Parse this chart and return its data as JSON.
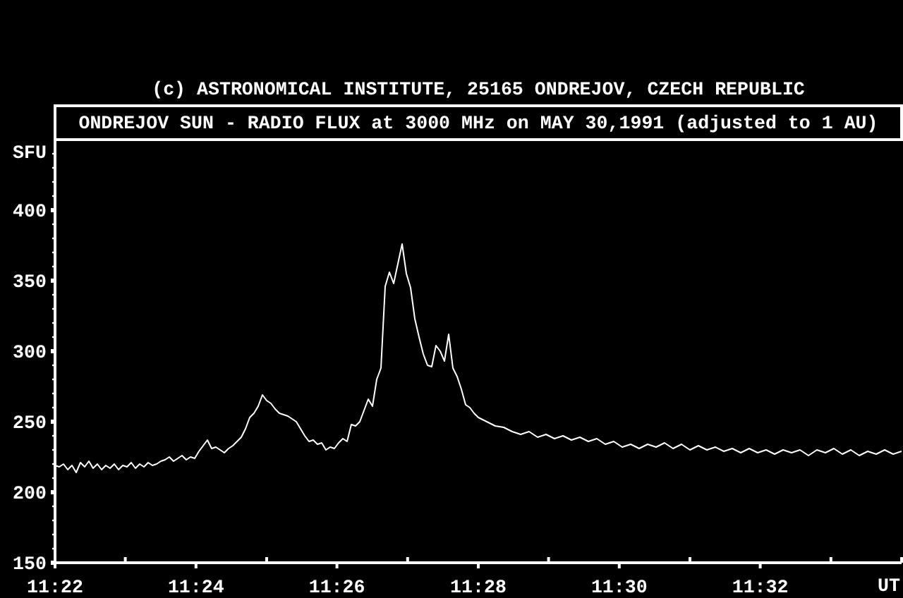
{
  "chart_data": {
    "type": "line",
    "title": "(c) ASTRONOMICAL INSTITUTE, 25165 ONDREJOV, CZECH REPUBLIC",
    "subtitle": "ONDREJOV SUN - RADIO FLUX at 3000 MHz on MAY 30,1991 (adjusted to 1 AU)",
    "xlabel": "UT",
    "ylabel": "SFU",
    "color": "#ffffff",
    "x": [
      11.3667,
      11.3677,
      11.3687,
      11.3697,
      11.3707,
      11.3717,
      11.3727,
      11.3737,
      11.3747,
      11.3757,
      11.3767,
      11.3777,
      11.3787,
      11.3797,
      11.3807,
      11.3817,
      11.3827,
      11.3837,
      11.3847,
      11.3857,
      11.3867,
      11.3877,
      11.3887,
      11.3897,
      11.3907,
      11.3917,
      11.3927,
      11.3937,
      11.3947,
      11.3957,
      11.3967,
      11.3977,
      11.3987,
      11.3997,
      11.4007,
      11.4017,
      11.4027,
      11.4037,
      11.4047,
      11.4057,
      11.4067,
      11.4077,
      11.4087,
      11.4097,
      11.4107,
      11.4117,
      11.4127,
      11.4137,
      11.4147,
      11.4157,
      11.4167,
      11.4177,
      11.4187,
      11.4197,
      11.4207,
      11.4217,
      11.4227,
      11.4237,
      11.4247,
      11.4257,
      11.4267,
      11.4277,
      11.4287,
      11.4297,
      11.4307,
      11.4317,
      11.4327,
      11.4337,
      11.4347,
      11.4357,
      11.4367,
      11.4377,
      11.4387,
      11.4397,
      11.4407,
      11.4417,
      11.4427,
      11.4437,
      11.4447,
      11.4457,
      11.4467,
      11.4477,
      11.4487,
      11.4497,
      11.4507,
      11.4517,
      11.4527,
      11.4537,
      11.4547,
      11.4557,
      11.4567,
      11.4577,
      11.4587,
      11.4597,
      11.4607,
      11.4617,
      11.4627,
      11.4637,
      11.4647,
      11.4657,
      11.4667,
      11.4707,
      11.4727,
      11.4747,
      11.4767,
      11.4787,
      11.4807,
      11.4827,
      11.4847,
      11.4867,
      11.4887,
      11.4907,
      11.4927,
      11.4947,
      11.4967,
      11.4987,
      11.5007,
      11.5027,
      11.5047,
      11.5067,
      11.5087,
      11.5107,
      11.5127,
      11.5147,
      11.5167,
      11.5187,
      11.5207,
      11.5227,
      11.5247,
      11.5267,
      11.5287,
      11.5307,
      11.5327,
      11.5347,
      11.5367,
      11.5387,
      11.5407,
      11.5427,
      11.5447,
      11.5467,
      11.5487,
      11.5507,
      11.5527,
      11.5547,
      11.5567,
      11.5587,
      11.5607,
      11.5627,
      11.5647,
      11.5667
    ],
    "values": [
      219,
      218,
      220,
      216,
      219,
      214,
      221,
      218,
      222,
      217,
      220,
      216,
      219,
      217,
      220,
      216,
      219,
      218,
      221,
      217,
      220,
      218,
      221,
      219,
      220,
      222,
      223,
      225,
      222,
      224,
      226,
      223,
      225,
      224,
      229,
      233,
      237,
      231,
      232,
      230,
      228,
      231,
      233,
      236,
      239,
      245,
      253,
      256,
      261,
      269,
      265,
      263,
      259,
      256,
      255,
      254,
      252,
      250,
      245,
      240,
      236,
      237,
      234,
      235,
      230,
      232,
      231,
      235,
      238,
      236,
      248,
      247,
      250,
      258,
      266,
      261,
      280,
      288,
      346,
      356,
      348,
      362,
      376,
      355,
      345,
      323,
      310,
      298,
      290,
      289,
      304,
      300,
      293,
      312,
      288,
      282,
      273,
      262,
      260,
      256,
      253,
      247,
      246,
      243,
      241,
      243,
      239,
      241,
      238,
      240,
      237,
      239,
      236,
      238,
      234,
      236,
      232,
      234,
      231,
      234,
      232,
      235,
      231,
      234,
      230,
      233,
      230,
      232,
      229,
      231,
      228,
      231,
      228,
      230,
      227,
      230,
      228,
      230,
      226,
      230,
      228,
      231,
      227,
      230,
      226,
      229,
      227,
      230,
      227,
      229
    ],
    "xlim": [
      11.3667,
      11.5667
    ],
    "xticks": [
      {
        "value": 11.3667,
        "label": "11:22"
      },
      {
        "value": 11.3833,
        "label": null
      },
      {
        "value": 11.4,
        "label": "11:24"
      },
      {
        "value": 11.4167,
        "label": null
      },
      {
        "value": 11.4333,
        "label": "11:26"
      },
      {
        "value": 11.45,
        "label": null
      },
      {
        "value": 11.4667,
        "label": "11:28"
      },
      {
        "value": 11.4833,
        "label": null
      },
      {
        "value": 11.5,
        "label": "11:30"
      },
      {
        "value": 11.5167,
        "label": null
      },
      {
        "value": 11.5333,
        "label": "11:32"
      },
      {
        "value": 11.55,
        "label": null
      },
      {
        "value": 11.5667,
        "label": null
      }
    ],
    "ylim": [
      150,
      450
    ],
    "yticks": [
      150,
      {
        "value": 160,
        "label": null
      },
      {
        "value": 170,
        "label": null
      },
      {
        "value": 180,
        "label": null
      },
      {
        "value": 190,
        "label": null
      },
      200,
      {
        "value": 210,
        "label": null
      },
      {
        "value": 220,
        "label": null
      },
      {
        "value": 230,
        "label": null
      },
      {
        "value": 240,
        "label": null
      },
      250,
      {
        "value": 260,
        "label": null
      },
      {
        "value": 270,
        "label": null
      },
      {
        "value": 280,
        "label": null
      },
      {
        "value": 290,
        "label": null
      },
      300,
      {
        "value": 310,
        "label": null
      },
      {
        "value": 320,
        "label": null
      },
      {
        "value": 330,
        "label": null
      },
      {
        "value": 340,
        "label": null
      },
      350,
      {
        "value": 360,
        "label": null
      },
      {
        "value": 370,
        "label": null
      },
      {
        "value": 380,
        "label": null
      },
      {
        "value": 390,
        "label": null
      },
      400,
      {
        "value": 410,
        "label": null
      },
      {
        "value": 420,
        "label": null
      },
      {
        "value": 430,
        "label": null
      },
      {
        "value": 440,
        "label": null
      }
    ]
  }
}
